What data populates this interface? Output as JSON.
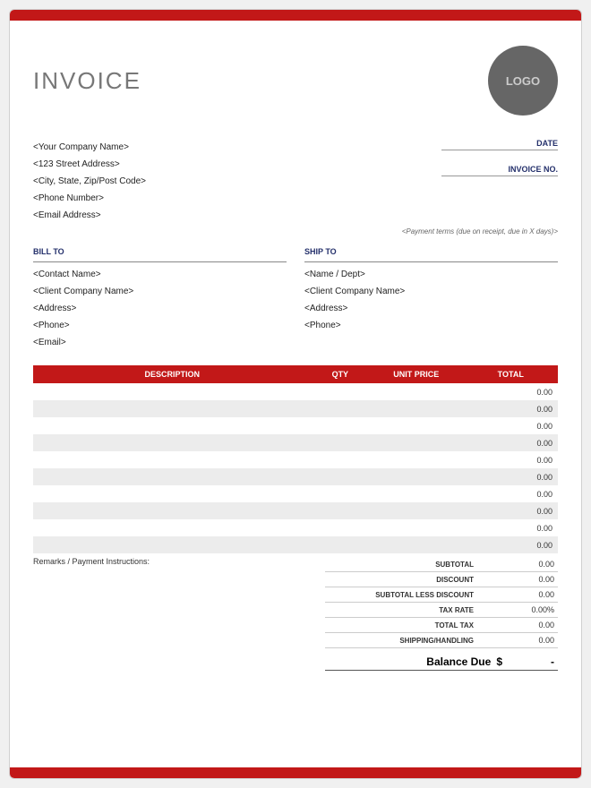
{
  "colors": {
    "accent": "#c21818",
    "header_bg": "#c21818",
    "title_text": "#777777",
    "logo_bg": "#666666",
    "logo_text": "#cccccc",
    "label_blue": "#24306b",
    "row_alt": "#ececec",
    "border": "#cccccc"
  },
  "header": {
    "title": "INVOICE",
    "logo_text": "LOGO"
  },
  "company": {
    "name": "<Your Company Name>",
    "street": "<123 Street Address>",
    "city": "<City, State, Zip/Post Code>",
    "phone": "<Phone Number>",
    "email": "<Email Address>"
  },
  "meta": {
    "date_label": "DATE",
    "invoice_no_label": "INVOICE NO.",
    "payment_terms": "<Payment terms (due on receipt, due in X days)>"
  },
  "bill_to": {
    "heading": "BILL TO",
    "contact": "<Contact Name>",
    "company": "<Client Company Name>",
    "address": "<Address>",
    "phone": "<Phone>",
    "email": "<Email>"
  },
  "ship_to": {
    "heading": "SHIP TO",
    "name": "<Name / Dept>",
    "company": "<Client Company Name>",
    "address": "<Address>",
    "phone": "<Phone>"
  },
  "table": {
    "columns": {
      "description": "DESCRIPTION",
      "qty": "QTY",
      "unit_price": "UNIT PRICE",
      "total": "TOTAL"
    },
    "rows": [
      {
        "description": "",
        "qty": "",
        "unit_price": "",
        "total": "0.00"
      },
      {
        "description": "",
        "qty": "",
        "unit_price": "",
        "total": "0.00"
      },
      {
        "description": "",
        "qty": "",
        "unit_price": "",
        "total": "0.00"
      },
      {
        "description": "",
        "qty": "",
        "unit_price": "",
        "total": "0.00"
      },
      {
        "description": "",
        "qty": "",
        "unit_price": "",
        "total": "0.00"
      },
      {
        "description": "",
        "qty": "",
        "unit_price": "",
        "total": "0.00"
      },
      {
        "description": "",
        "qty": "",
        "unit_price": "",
        "total": "0.00"
      },
      {
        "description": "",
        "qty": "",
        "unit_price": "",
        "total": "0.00"
      },
      {
        "description": "",
        "qty": "",
        "unit_price": "",
        "total": "0.00"
      },
      {
        "description": "",
        "qty": "",
        "unit_price": "",
        "total": "0.00"
      }
    ]
  },
  "remarks_label": "Remarks / Payment Instructions:",
  "totals": {
    "subtotal": {
      "label": "SUBTOTAL",
      "value": "0.00"
    },
    "discount": {
      "label": "DISCOUNT",
      "value": "0.00"
    },
    "subtotal_less_discount": {
      "label": "SUBTOTAL LESS DISCOUNT",
      "value": "0.00"
    },
    "tax_rate": {
      "label": "TAX RATE",
      "value": "0.00%"
    },
    "total_tax": {
      "label": "TOTAL TAX",
      "value": "0.00"
    },
    "shipping": {
      "label": "SHIPPING/HANDLING",
      "value": "0.00"
    },
    "balance": {
      "label": "Balance Due",
      "currency": "$",
      "value": "-"
    }
  }
}
